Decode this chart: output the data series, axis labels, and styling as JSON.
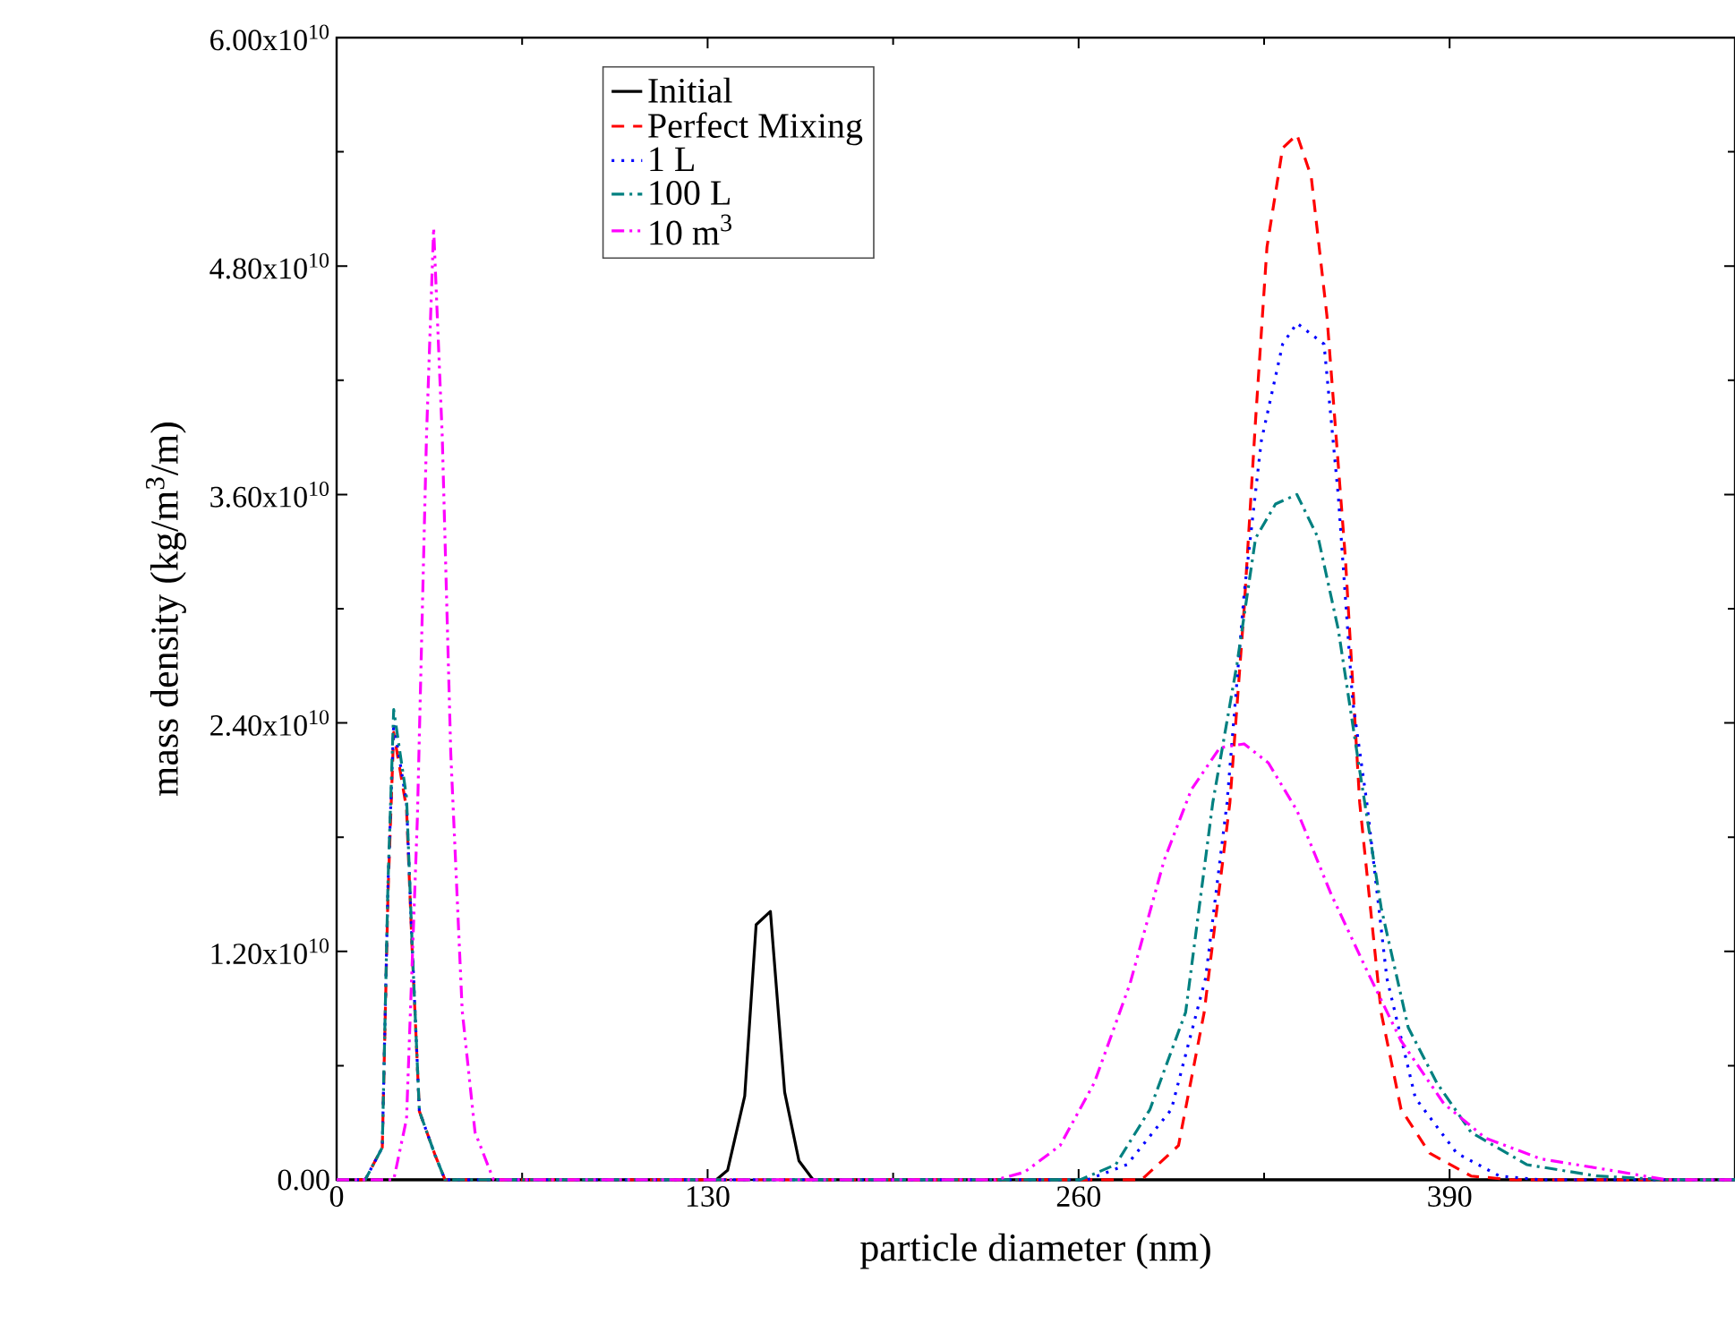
{
  "chart_data": {
    "type": "line",
    "xlabel": "particle diameter (nm)",
    "ylabel": "mass density (kg/m$^{3}$/m)",
    "xlim": [
      0,
      490
    ],
    "xticks": [
      0,
      130,
      260,
      390
    ],
    "ylim": [
      0,
      60000000000.0
    ],
    "yticks": [
      {
        "value": 0,
        "label": "0.00"
      },
      {
        "value": 12000000000.0,
        "label": "1.20x10$^{10}$"
      },
      {
        "value": 24000000000.0,
        "label": "2.40x10$^{10}$"
      },
      {
        "value": 36000000000.0,
        "label": "3.60x10$^{10}$"
      },
      {
        "value": 48000000000.0,
        "label": "4.80x10$^{10}$"
      },
      {
        "value": 60000000000.0,
        "label": "6.00x10$^{10}$"
      }
    ],
    "legend": "top left",
    "marker": "none",
    "series": [
      {
        "name": "Initial",
        "color": "#000000",
        "line_style": "solid",
        "x": [
          0,
          133,
          137,
          143,
          147,
          152,
          157,
          162,
          167,
          490
        ],
        "values": [
          0,
          0,
          500000000.0,
          4400000000.0,
          13400000000.0,
          14100000000.0,
          4600000000.0,
          1000000000.0,
          0,
          0
        ]
      },
      {
        "name": "Perfect Mixing",
        "color": "#ff0000",
        "line_style": "dashed",
        "x": [
          0,
          10,
          16,
          18,
          20,
          24.5,
          26.5,
          29,
          34.5,
          38,
          282,
          295,
          304,
          313,
          318,
          322,
          326,
          331.5,
          336.5,
          341.5,
          347,
          353.5,
          358.5,
          366,
          373,
          383,
          397.5,
          412,
          490
        ],
        "values": [
          0,
          0,
          1700000000.0,
          15000000000.0,
          23500000000.0,
          19500000000.0,
          12000000000.0,
          3600000000.0,
          1300000000.0,
          0,
          0,
          1800000000.0,
          8800000000.0,
          19800000000.0,
          30000000000.0,
          39900000000.0,
          49000000000.0,
          54200000000.0,
          54900000000.0,
          52700000000.0,
          45400000000.0,
          32600000000.0,
          19800000000.0,
          8800000000.0,
          3700000000.0,
          1400000000.0,
          200000000.0,
          0,
          0
        ]
      },
      {
        "name": "1 L",
        "color": "#0000ff",
        "line_style": "dotted",
        "x": [
          0,
          10,
          16,
          18,
          20,
          24.5,
          26.5,
          29,
          34.5,
          38,
          263,
          277,
          292.5,
          304.5,
          312,
          318,
          324,
          331.5,
          336.5,
          346,
          351,
          356,
          361,
          368,
          378,
          392.5,
          407.5,
          422,
          490
        ],
        "values": [
          0,
          0,
          1700000000.0,
          15500000000.0,
          24000000000.0,
          19800000000.0,
          12200000000.0,
          3600000000.0,
          1300000000.0,
          0,
          0,
          800000000.0,
          3700000000.0,
          10600000000.0,
          19800000000.0,
          30800000000.0,
          38800000000.0,
          43900000000.0,
          45000000000.0,
          43900000000.0,
          35900000000.0,
          25200000000.0,
          19800000000.0,
          10600000000.0,
          4300000000.0,
          1400000000.0,
          200000000.0,
          0,
          0
        ]
      },
      {
        "name": "100 L",
        "color": "#008080",
        "line_style": "dashdot",
        "x": [
          0,
          10,
          16,
          18,
          20,
          24.5,
          26.5,
          29,
          34.5,
          38,
          260.5,
          273,
          285,
          297.5,
          307,
          315.5,
          322,
          329,
          336.5,
          344,
          351,
          358.5,
          366,
          375.5,
          385.5,
          397.5,
          417,
          441.5,
          467,
          490
        ],
        "values": [
          0,
          0,
          1700000000.0,
          15600000000.0,
          24700000000.0,
          20100000000.0,
          12200000000.0,
          3600000000.0,
          1300000000.0,
          0,
          0,
          800000000.0,
          3700000000.0,
          8800000000.0,
          19800000000.0,
          27100000000.0,
          33700000000.0,
          35500000000.0,
          36000000000.0,
          33700000000.0,
          28900000000.0,
          21500000000.0,
          14300000000.0,
          8000000000.0,
          5100000000.0,
          2500000000.0,
          800000000.0,
          200000000.0,
          0,
          0
        ]
      },
      {
        "name": "10 m$^{3}$",
        "color": "#ff00ff",
        "line_style": "dashdotdot",
        "x": [
          0,
          20,
          24.5,
          28.3,
          31.5,
          34,
          37,
          40,
          44,
          48.5,
          55,
          231,
          241,
          253.5,
          265.5,
          278,
          290,
          299.5,
          309.5,
          318,
          326.5,
          336.5,
          348.5,
          361,
          373,
          388,
          402.5,
          422,
          446.5,
          466,
          490
        ],
        "values": [
          0,
          0,
          3200000000.0,
          19000000000.0,
          39100000000.0,
          50000000000.0,
          39100000000.0,
          22400000000.0,
          8900000000.0,
          2500000000.0,
          0,
          0,
          400000000.0,
          1800000000.0,
          5100000000.0,
          10300000000.0,
          16800000000.0,
          20500000000.0,
          22700000000.0,
          22900000000.0,
          21900000000.0,
          19400000000.0,
          15000000000.0,
          11000000000.0,
          7300000000.0,
          4000000000.0,
          2200000000.0,
          1100000000.0,
          500000000.0,
          0,
          0
        ]
      }
    ]
  }
}
